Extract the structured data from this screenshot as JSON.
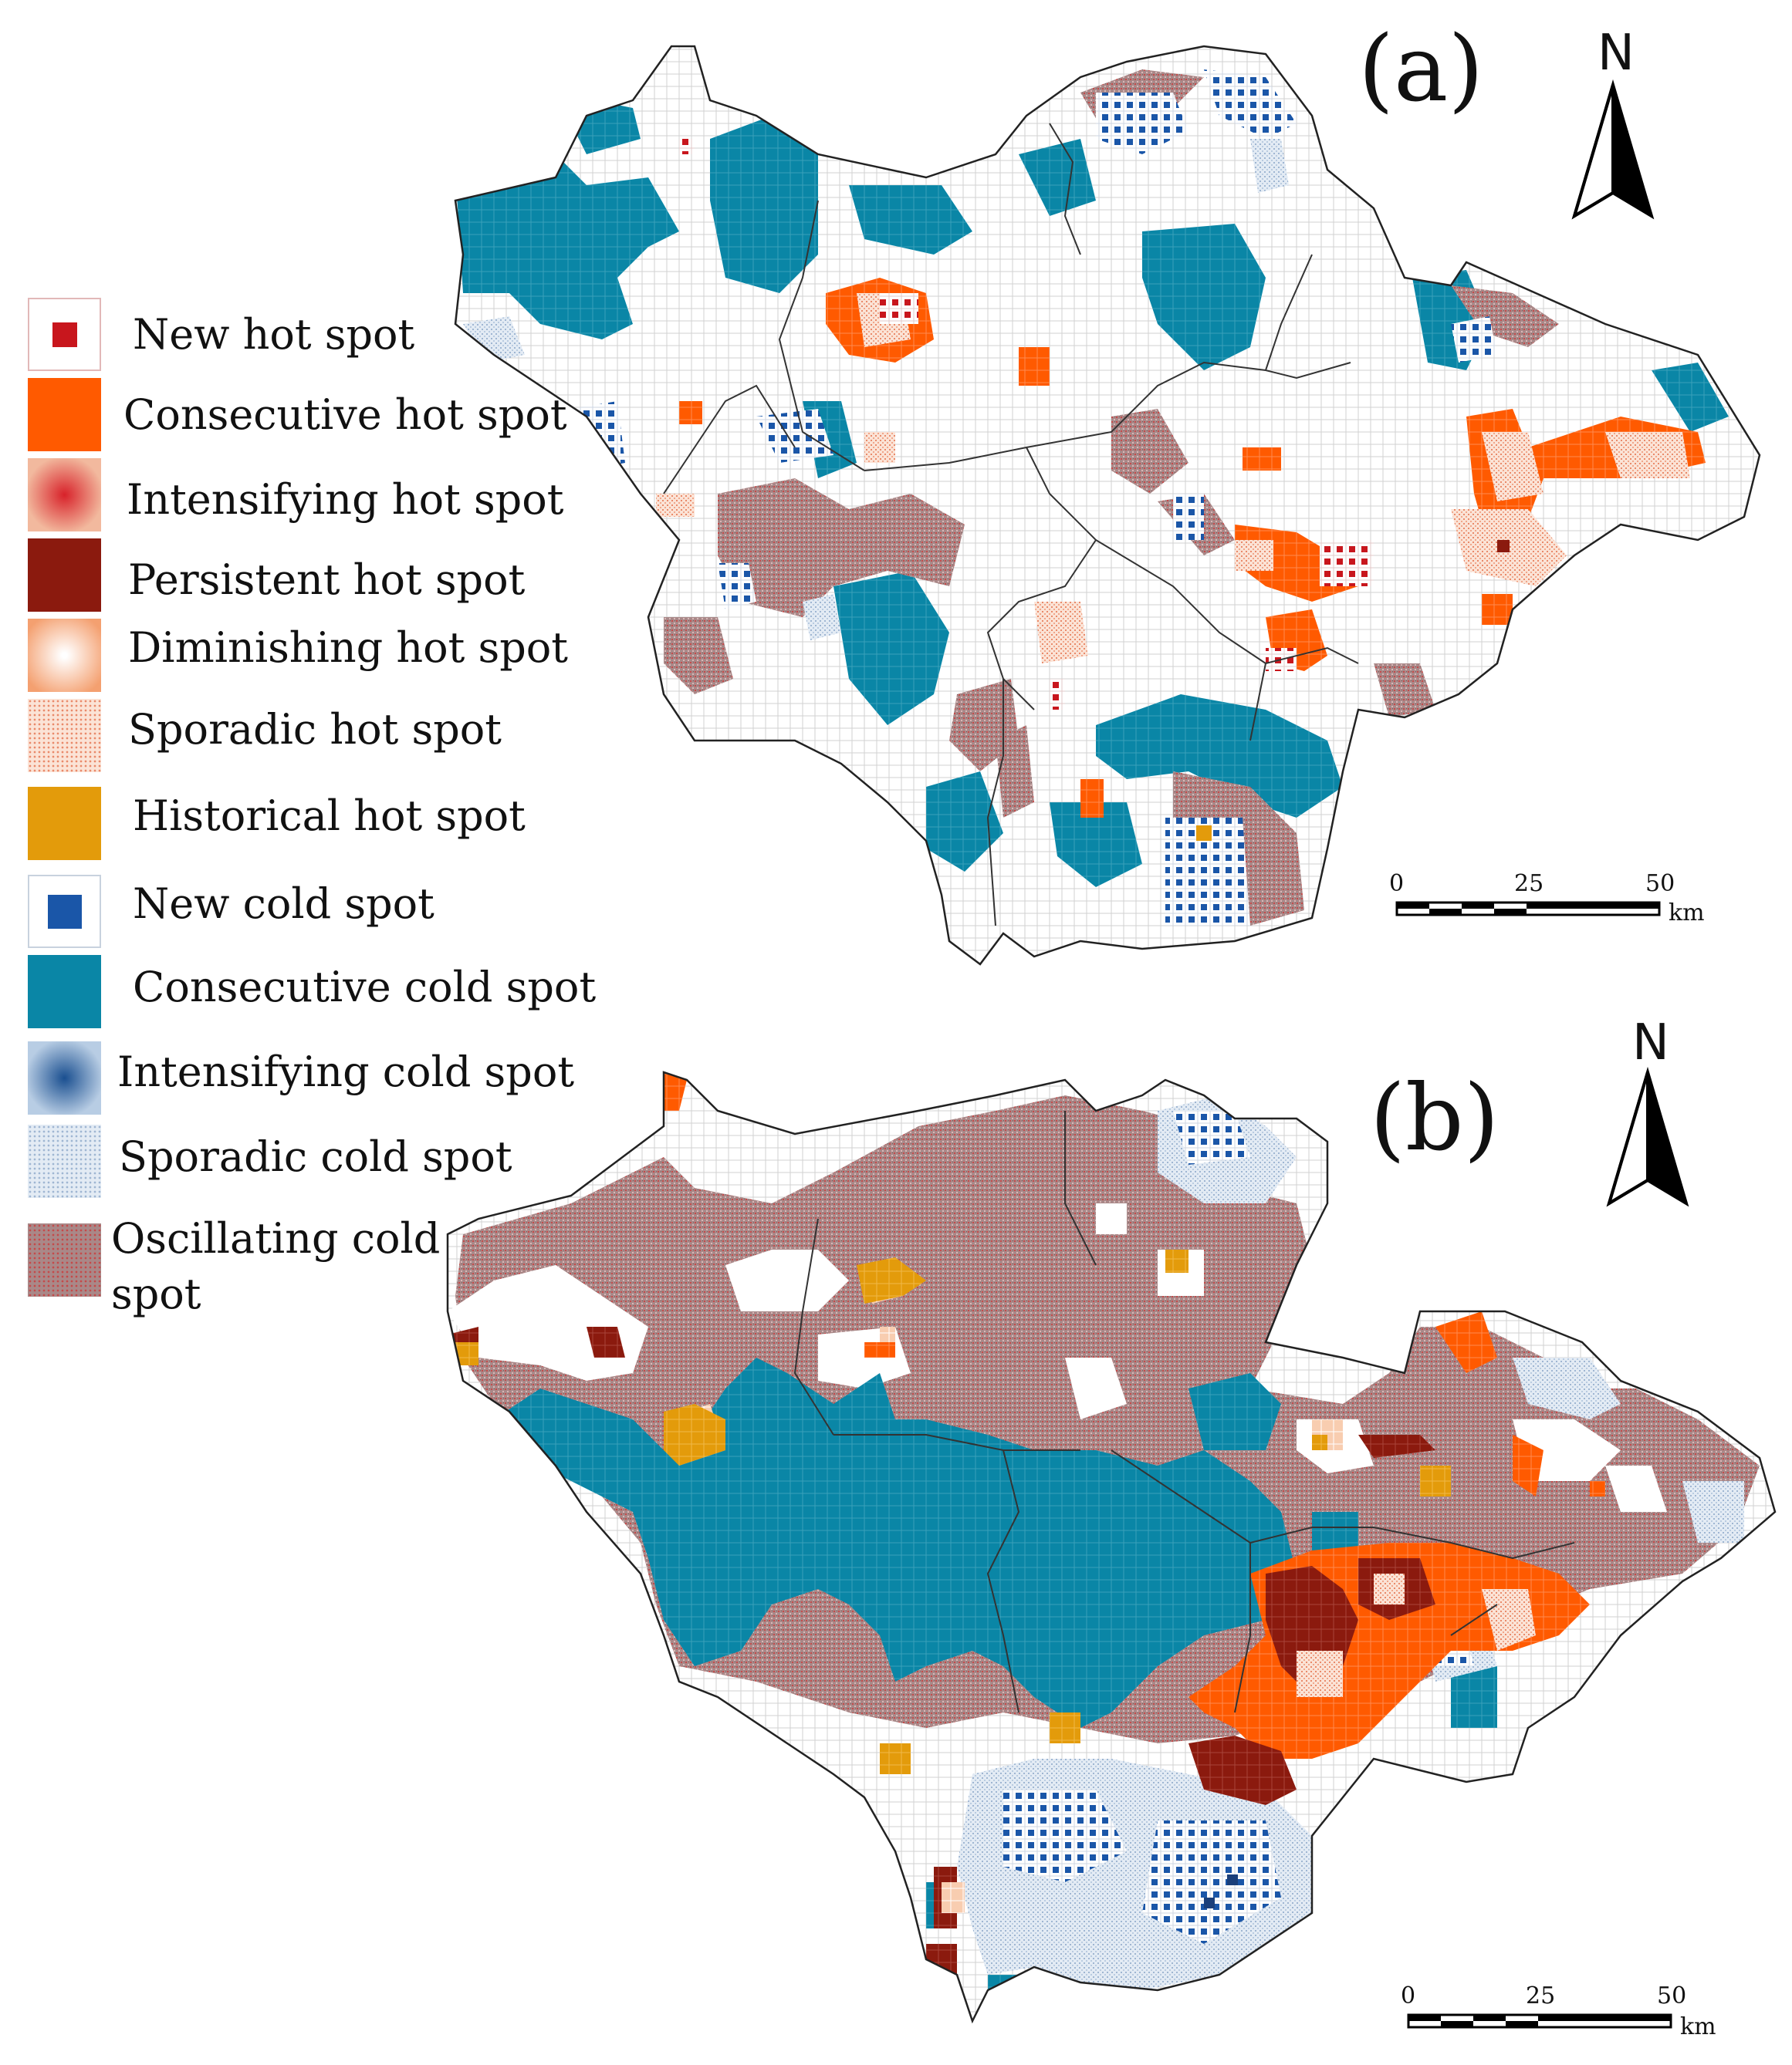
{
  "legend": {
    "items": [
      {
        "label": "New hot spot",
        "pattern": "new-hot",
        "color": "#c8161d"
      },
      {
        "label": "Consecutive hot spot",
        "pattern": "solid",
        "color": "#ff5a00"
      },
      {
        "label": "Intensifying hot spot",
        "pattern": "intensifying-hot",
        "color": "#e2452c"
      },
      {
        "label": "Persistent hot spot",
        "pattern": "solid",
        "color": "#8b1a0e"
      },
      {
        "label": "Diminishing hot spot",
        "pattern": "diminishing-hot",
        "color": "#f4a070"
      },
      {
        "label": "Sporadic hot spot",
        "pattern": "sporadic-hot",
        "color": "#f0a080"
      },
      {
        "label": "Historical hot spot",
        "pattern": "solid",
        "color": "#e39b0b"
      },
      {
        "label": "New cold spot",
        "pattern": "new-cold",
        "color": "#1a56a8"
      },
      {
        "label": "Consecutive cold spot",
        "pattern": "solid",
        "color": "#0a86a6"
      },
      {
        "label": "Intensifying cold spot",
        "pattern": "intensifying-cold",
        "color": "#2a62a6"
      },
      {
        "label": "Sporadic cold spot",
        "pattern": "sporadic-cold",
        "color": "#a9bdd6"
      },
      {
        "label": "Oscillating cold",
        "label2": "spot",
        "pattern": "oscillating-cold",
        "color": "#a47a7a"
      }
    ]
  },
  "panels": {
    "a": {
      "label": "(a)",
      "north": "N",
      "scale": {
        "ticks": [
          "0",
          "25",
          "50"
        ],
        "unit": "km"
      }
    },
    "b": {
      "label": "(b)",
      "north": "N",
      "scale": {
        "ticks": [
          "0",
          "25",
          "50"
        ],
        "unit": "km"
      }
    }
  },
  "colors": {
    "white_cell": "#ffffff",
    "grid_line": "#c8c8c8",
    "boundary": "#222222"
  }
}
